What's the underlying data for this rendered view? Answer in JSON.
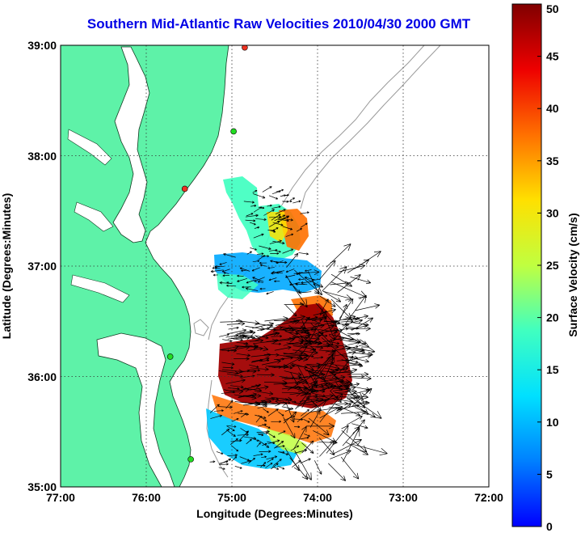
{
  "title": "Southern Mid-Atlantic Raw Velocities 2010/04/30 2000 GMT",
  "map": {
    "xlabel": "Longitude (Degrees:Minutes)",
    "ylabel": "Latitude (Degrees:Minutes)",
    "lon_range": [
      -77,
      -72
    ],
    "lat_range": [
      35,
      39
    ],
    "lon_ticks": [
      "77:00",
      "76:00",
      "75:00",
      "74:00",
      "73:00",
      "72:00"
    ],
    "lat_ticks": [
      "39:00",
      "38:00",
      "37:00",
      "36:00",
      "35:00"
    ],
    "grid": true,
    "land_color": "#5ef2a8",
    "bathymetry_color": "#9a9a9a",
    "stations": [
      {
        "lon": -74.98,
        "lat": 38.22,
        "color": "#22dd22"
      },
      {
        "lon": -75.55,
        "lat": 37.7,
        "color": "#ee3322"
      },
      {
        "lon": -75.72,
        "lat": 36.18,
        "color": "#22dd22"
      },
      {
        "lon": -75.48,
        "lat": 35.25,
        "color": "#22dd22"
      },
      {
        "lon": -74.85,
        "lat": 38.98,
        "color": "#ee3322"
      }
    ]
  },
  "colorbar": {
    "label": "Surface Velocity (cm/s)",
    "min": 0,
    "max": 50,
    "ticks": [
      "0",
      "5",
      "10",
      "15",
      "20",
      "25",
      "30",
      "35",
      "40",
      "45",
      "50"
    ]
  }
}
